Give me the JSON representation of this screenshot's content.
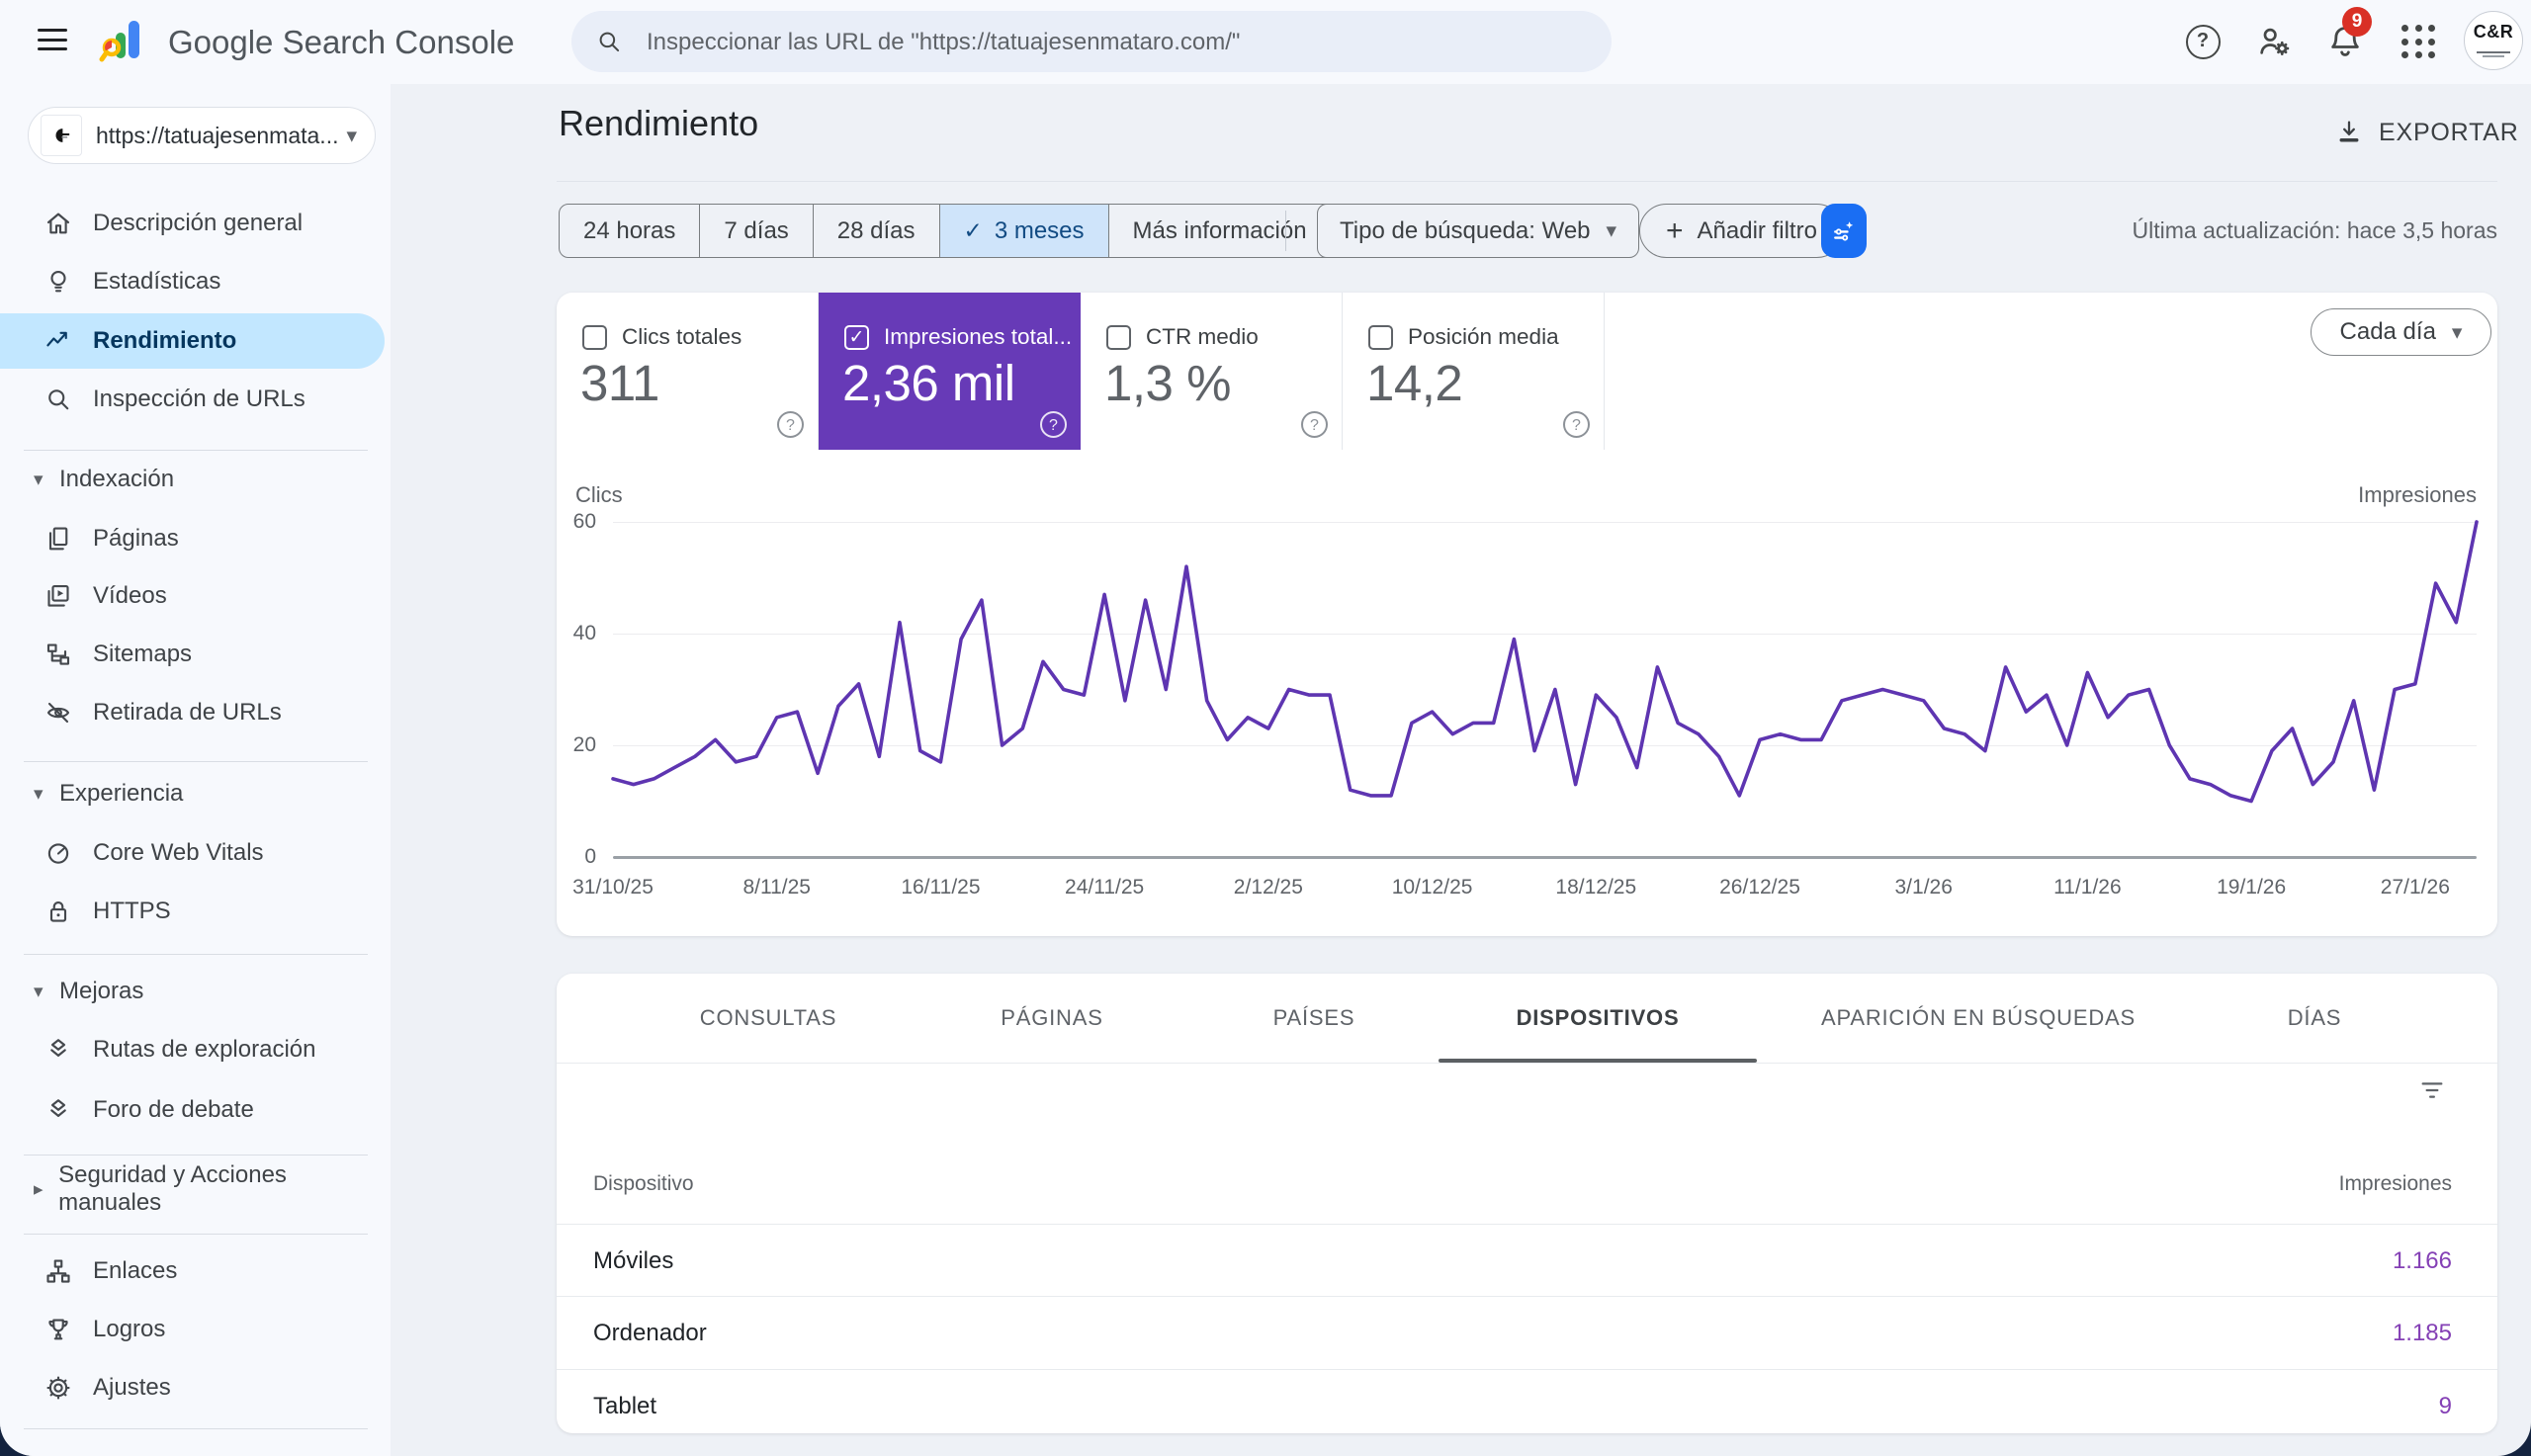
{
  "topbar": {
    "title": "Google Search Console",
    "search_placeholder": "Inspeccionar las URL de \"https://tatuajesenmataro.com/\"",
    "notification_count": "9",
    "avatar_label": "C&R"
  },
  "sidebar": {
    "property_label": "https://tatuajesenmata...",
    "sections": [
      {
        "items": [
          {
            "icon": "home-icon",
            "label": "Descripción general"
          },
          {
            "icon": "lightbulb-icon",
            "label": "Estadísticas"
          },
          {
            "icon": "trending-icon",
            "label": "Rendimiento",
            "active": true
          },
          {
            "icon": "search-icon",
            "label": "Inspección de URLs"
          }
        ]
      },
      {
        "header": "Indexación",
        "expanded": true,
        "items": [
          {
            "icon": "pages-icon",
            "label": "Páginas"
          },
          {
            "icon": "video-icon",
            "label": "Vídeos"
          },
          {
            "icon": "sitemap-icon",
            "label": "Sitemaps"
          },
          {
            "icon": "eye-off-icon",
            "label": "Retirada de URLs"
          }
        ]
      },
      {
        "header": "Experiencia",
        "expanded": true,
        "items": [
          {
            "icon": "gauge-icon",
            "label": "Core Web Vitals"
          },
          {
            "icon": "lock-icon",
            "label": "HTTPS"
          }
        ]
      },
      {
        "header": "Mejoras",
        "expanded": true,
        "items": [
          {
            "icon": "layers-icon",
            "label": "Rutas de exploración"
          },
          {
            "icon": "layers-icon",
            "label": "Foro de debate"
          }
        ]
      },
      {
        "header": "Seguridad y Acciones manuales",
        "expanded": false,
        "items": []
      },
      {
        "items": [
          {
            "icon": "links-icon",
            "label": "Enlaces"
          },
          {
            "icon": "trophy-icon",
            "label": "Logros"
          },
          {
            "icon": "gear-icon",
            "label": "Ajustes"
          }
        ]
      }
    ]
  },
  "main": {
    "page_title": "Rendimiento",
    "export_label": "EXPORTAR",
    "filters": {
      "chips": [
        {
          "label": "24 horas"
        },
        {
          "label": "7 días"
        },
        {
          "label": "28 días"
        },
        {
          "label": "3 meses",
          "selected": true
        },
        {
          "label": "Más información",
          "caret": true
        }
      ],
      "search_type_label": "Tipo de búsqueda: Web",
      "add_filter_label": "Añadir filtro",
      "last_update": "Última actualización: hace 3,5 horas"
    },
    "metrics": [
      {
        "label": "Clics totales",
        "value": "311",
        "selected": false
      },
      {
        "label": "Impresiones total...",
        "value": "2,36 mil",
        "selected": true
      },
      {
        "label": "CTR medio",
        "value": "1,3 %",
        "selected": false
      },
      {
        "label": "Posición media",
        "value": "14,2",
        "selected": false
      }
    ],
    "granularity_label": "Cada día",
    "tabs": [
      "CONSULTAS",
      "PÁGINAS",
      "PAÍSES",
      "DISPOSITIVOS",
      "APARICIÓN EN BÚSQUEDAS",
      "DÍAS"
    ],
    "active_tab": "DISPOSITIVOS",
    "table": {
      "columns": [
        "Dispositivo",
        "Impresiones"
      ],
      "rows": [
        {
          "device": "Móviles",
          "impressions": "1.166"
        },
        {
          "device": "Ordenador",
          "impressions": "1.185"
        },
        {
          "device": "Tablet",
          "impressions": "9"
        }
      ]
    }
  },
  "chart_data": {
    "type": "line",
    "left_axis_label": "Clics",
    "right_axis_label": "Impresiones",
    "ylim": [
      0,
      60
    ],
    "y_ticks": [
      0,
      20,
      40,
      60
    ],
    "grid": true,
    "x_tick_labels": [
      "31/10/25",
      "8/11/25",
      "16/11/25",
      "24/11/25",
      "2/12/25",
      "10/12/25",
      "18/12/25",
      "26/12/25",
      "3/1/26",
      "11/1/26",
      "19/1/26",
      "27/1/26"
    ],
    "x_tick_indices": [
      0,
      8,
      16,
      24,
      32,
      40,
      48,
      56,
      64,
      72,
      80,
      88
    ],
    "series": [
      {
        "name": "Impresiones",
        "color": "#5e35b1",
        "values": [
          14,
          13,
          14,
          16,
          18,
          21,
          17,
          18,
          25,
          26,
          15,
          27,
          31,
          18,
          42,
          19,
          17,
          39,
          46,
          20,
          23,
          35,
          30,
          29,
          47,
          28,
          46,
          30,
          52,
          28,
          21,
          25,
          23,
          30,
          29,
          29,
          12,
          11,
          11,
          24,
          26,
          22,
          24,
          24,
          39,
          19,
          30,
          13,
          29,
          25,
          16,
          34,
          24,
          22,
          18,
          11,
          21,
          22,
          21,
          21,
          28,
          29,
          30,
          29,
          28,
          23,
          22,
          19,
          34,
          26,
          29,
          20,
          33,
          25,
          29,
          30,
          20,
          14,
          13,
          11,
          10,
          19,
          23,
          13,
          17,
          28,
          12,
          30,
          31,
          49,
          42,
          60
        ]
      }
    ]
  },
  "colors": {
    "selected_metric_bg": "#673ab7",
    "line_purple": "#5e35b1",
    "table_value_purple": "#8440b5",
    "selected_chip_bg": "#cfe4fa",
    "selected_nav_bg": "#c2e7ff",
    "filter_button_blue": "#1a6ef3",
    "badge_red": "#d93025"
  }
}
